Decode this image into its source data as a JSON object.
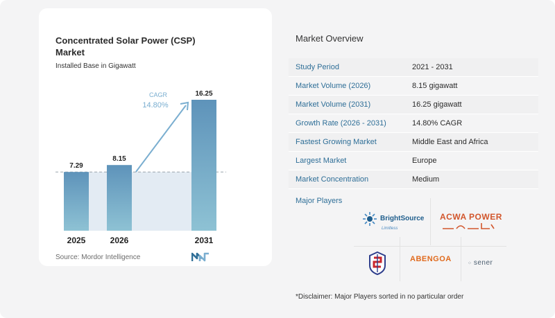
{
  "chart_data": {
    "type": "bar",
    "title": "Concentrated Solar Power (CSP) Market",
    "subtitle": "Installed Base in Gigawatt",
    "categories": [
      "2025",
      "2026",
      "2031"
    ],
    "values": [
      7.29,
      8.15,
      16.25
    ],
    "value_labels": [
      "7.29",
      "8.15",
      "16.25"
    ],
    "cagr_label": "CAGR",
    "cagr_value": "14.80%",
    "ylim": [
      0,
      16.25
    ],
    "colors": {
      "bar": "#6a9fc4",
      "bar_dark": "#5e93ba",
      "shade": "#e3ebf3",
      "arrow": "#7aaed0",
      "text": "#1f1f1f",
      "cagr": "#7aaed0"
    }
  },
  "source": "Source: Mordor Intelligence",
  "overview": {
    "title": "Market Overview",
    "rows": [
      {
        "key": "Study Period",
        "value": "2021 - 2031"
      },
      {
        "key": "Market Volume (2026)",
        "value": "8.15 gigawatt"
      },
      {
        "key": "Market Volume (2031)",
        "value": "16.25 gigawatt"
      },
      {
        "key": "Growth Rate (2026 - 2031)",
        "value": "14.80% CAGR"
      },
      {
        "key": "Fastest Growing Market",
        "value": "Middle East and Africa"
      },
      {
        "key": "Largest Market",
        "value": "Europe"
      },
      {
        "key": "Market Concentration",
        "value": "Medium"
      }
    ]
  },
  "players": {
    "title": "Major Players",
    "brightsource": "BrightSource",
    "brightsource_sub": "Limitless",
    "acwa": "ACWA POWER",
    "abengoa": "ABENGOA",
    "sener": "sener"
  },
  "disclaimer": "*Disclaimer: Major Players sorted in no particular order"
}
